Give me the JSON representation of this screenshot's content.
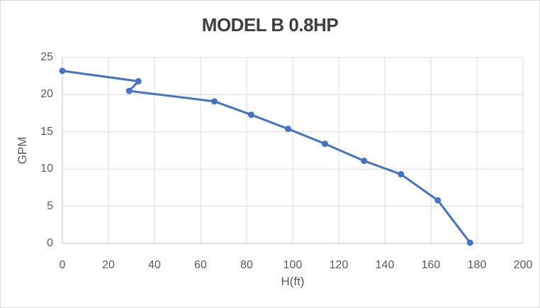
{
  "chart_data": {
    "type": "line",
    "title": "MODEL B 0.8HP",
    "xlabel": "H(ft)",
    "ylabel": "GPM",
    "xlim": [
      0,
      200
    ],
    "ylim": [
      0,
      25
    ],
    "x_ticks": [
      0,
      20,
      40,
      60,
      80,
      100,
      120,
      140,
      160,
      180,
      200
    ],
    "y_ticks": [
      0,
      5,
      10,
      15,
      20,
      25
    ],
    "grid": true,
    "legend": false,
    "series": [
      {
        "name": "GPM vs H(ft)",
        "points": [
          [
            0,
            23.2
          ],
          [
            33,
            21.8
          ],
          [
            29,
            20.5
          ],
          [
            66,
            19.1
          ],
          [
            82,
            17.3
          ],
          [
            98,
            15.4
          ],
          [
            114,
            13.4
          ],
          [
            131,
            11.1
          ],
          [
            147,
            9.3
          ],
          [
            163,
            5.8
          ],
          [
            177,
            0.1
          ]
        ]
      }
    ],
    "line_color": "#4472C4",
    "marker": "circle",
    "gridline_color": "#D9D9D9",
    "axis_line_color": "#BFBFBF",
    "tick_label_color": "#595959",
    "title_color": "#3F3F3F",
    "background_color": "#FFFFFF"
  }
}
